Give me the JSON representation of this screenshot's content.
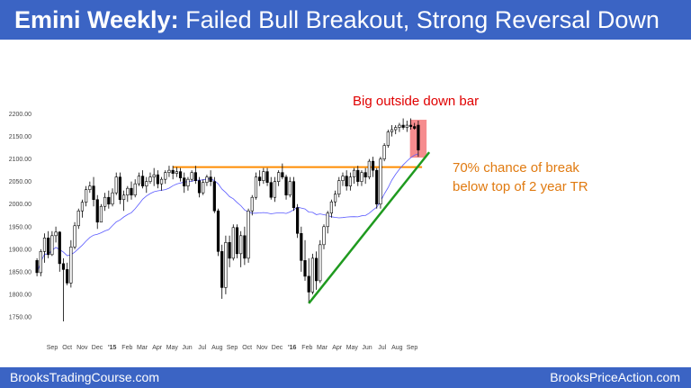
{
  "title": {
    "bold": "Emini Weekly:",
    "rest": "Failed Bull Breakout, Strong Reversal Down"
  },
  "footer": {
    "left": "BrooksTradingCourse.com",
    "right": "BrooksPriceAction.com"
  },
  "annotations": {
    "outside_bar": "Big outside down bar",
    "break_line1": "70% chance of break",
    "break_line2": "below top of 2 year TR"
  },
  "colors": {
    "banner": "#3b64c4",
    "candle": "#000000",
    "moving_average": "#5a5aff",
    "range_top_line": "#ff8c00",
    "trend_line": "#1f9a1f",
    "highlight": "#f4787a",
    "red_text": "#e00000",
    "orange_text": "#e07a10"
  },
  "chart_data": {
    "type": "candlestick",
    "timeframe": "weekly",
    "ylim": [
      1730,
      2225
    ],
    "yticks": [
      "2200.00",
      "2150.00",
      "2100.00",
      "2050.00",
      "2000.00",
      "1950.00",
      "1900.00",
      "1850.00",
      "1800.00",
      "1750.00"
    ],
    "xticks": [
      "Sep",
      "Oct",
      "Nov",
      "Dec",
      "'15",
      "Feb",
      "Mar",
      "Apr",
      "May",
      "Jun",
      "Jul",
      "Aug",
      "Sep",
      "Oct",
      "Nov",
      "Dec",
      "'16",
      "Feb",
      "Mar",
      "Apr",
      "May",
      "Jun",
      "Jul",
      "Aug",
      "Sep"
    ],
    "major_xticks": [
      "'15",
      "'16"
    ],
    "series": [
      {
        "type": "ohlc",
        "values": [
          [
            1875,
            1880,
            1840,
            1848
          ],
          [
            1848,
            1900,
            1840,
            1895
          ],
          [
            1895,
            1935,
            1870,
            1925
          ],
          [
            1925,
            1940,
            1880,
            1888
          ],
          [
            1888,
            1940,
            1885,
            1930
          ],
          [
            1930,
            1950,
            1915,
            1938
          ],
          [
            1938,
            1940,
            1850,
            1868
          ],
          [
            1868,
            1880,
            1740,
            1855
          ],
          [
            1855,
            1870,
            1820,
            1825
          ],
          [
            1825,
            1920,
            1815,
            1905
          ],
          [
            1905,
            1960,
            1900,
            1952
          ],
          [
            1952,
            1990,
            1945,
            1985
          ],
          [
            1985,
            2010,
            1970,
            2004
          ],
          [
            2004,
            2040,
            1995,
            2032
          ],
          [
            2032,
            2050,
            2025,
            2040
          ],
          [
            2040,
            2060,
            1995,
            2010
          ],
          [
            2010,
            2020,
            1945,
            1960
          ],
          [
            1960,
            2000,
            1960,
            1995
          ],
          [
            1995,
            2025,
            1985,
            2015
          ],
          [
            2015,
            2030,
            1990,
            2000
          ],
          [
            2000,
            2035,
            1995,
            2025
          ],
          [
            2025,
            2070,
            2020,
            2060
          ],
          [
            2060,
            2070,
            2000,
            2010
          ],
          [
            2010,
            2030,
            1985,
            2020
          ],
          [
            2020,
            2040,
            2005,
            2035
          ],
          [
            2035,
            2050,
            2010,
            2020
          ],
          [
            2020,
            2055,
            2015,
            2045
          ],
          [
            2045,
            2070,
            2040,
            2062
          ],
          [
            2062,
            2075,
            2035,
            2040
          ],
          [
            2040,
            2060,
            2025,
            2050
          ],
          [
            2050,
            2070,
            2045,
            2060
          ],
          [
            2060,
            2080,
            2040,
            2065
          ],
          [
            2065,
            2075,
            2035,
            2045
          ],
          [
            2045,
            2060,
            2030,
            2055
          ],
          [
            2055,
            2075,
            2045,
            2070
          ],
          [
            2070,
            2085,
            2060,
            2075
          ],
          [
            2075,
            2085,
            2055,
            2068
          ],
          [
            2068,
            2082,
            2060,
            2072
          ],
          [
            2072,
            2080,
            2050,
            2058
          ],
          [
            2058,
            2070,
            2025,
            2040
          ],
          [
            2040,
            2060,
            2030,
            2055
          ],
          [
            2055,
            2075,
            2050,
            2070
          ],
          [
            2070,
            2085,
            2045,
            2052
          ],
          [
            2052,
            2060,
            2015,
            2025
          ],
          [
            2025,
            2055,
            2020,
            2048
          ],
          [
            2048,
            2065,
            2040,
            2060
          ],
          [
            2060,
            2075,
            2040,
            2050
          ],
          [
            2050,
            2060,
            1980,
            1985
          ],
          [
            1985,
            1990,
            1885,
            1895
          ],
          [
            1895,
            1910,
            1790,
            1815
          ],
          [
            1815,
            1930,
            1800,
            1915
          ],
          [
            1915,
            1930,
            1860,
            1880
          ],
          [
            1880,
            1955,
            1875,
            1948
          ],
          [
            1948,
            1955,
            1880,
            1890
          ],
          [
            1890,
            1940,
            1860,
            1930
          ],
          [
            1930,
            1950,
            1865,
            1880
          ],
          [
            1880,
            1990,
            1870,
            1985
          ],
          [
            1985,
            2020,
            1975,
            2015
          ],
          [
            2015,
            2070,
            2010,
            2060
          ],
          [
            2060,
            2075,
            2040,
            2052
          ],
          [
            2052,
            2080,
            2045,
            2072
          ],
          [
            2072,
            2080,
            2040,
            2048
          ],
          [
            2048,
            2060,
            2010,
            2015
          ],
          [
            2015,
            2060,
            2005,
            2050
          ],
          [
            2050,
            2075,
            2040,
            2070
          ],
          [
            2070,
            2090,
            2055,
            2060
          ],
          [
            2060,
            2065,
            2010,
            2020
          ],
          [
            2020,
            2060,
            2015,
            2050
          ],
          [
            2050,
            2060,
            1985,
            1992
          ],
          [
            1992,
            2000,
            1925,
            1935
          ],
          [
            1935,
            1950,
            1850,
            1875
          ],
          [
            1875,
            1920,
            1830,
            1840
          ],
          [
            1840,
            1880,
            1780,
            1805
          ],
          [
            1805,
            1890,
            1800,
            1880
          ],
          [
            1880,
            1895,
            1810,
            1830
          ],
          [
            1830,
            1920,
            1825,
            1910
          ],
          [
            1910,
            1955,
            1900,
            1950
          ],
          [
            1950,
            1985,
            1935,
            1980
          ],
          [
            1980,
            2010,
            1970,
            2005
          ],
          [
            2005,
            2030,
            1995,
            2022
          ],
          [
            2022,
            2060,
            2015,
            2052
          ],
          [
            2052,
            2070,
            2040,
            2062
          ],
          [
            2062,
            2075,
            2030,
            2040
          ],
          [
            2040,
            2070,
            2030,
            2060
          ],
          [
            2060,
            2080,
            2045,
            2075
          ],
          [
            2075,
            2085,
            2040,
            2050
          ],
          [
            2050,
            2075,
            2040,
            2070
          ],
          [
            2070,
            2080,
            2045,
            2060
          ],
          [
            2060,
            2100,
            2055,
            2095
          ],
          [
            2095,
            2105,
            2060,
            2075
          ],
          [
            2075,
            2080,
            1990,
            2000
          ],
          [
            2000,
            2105,
            1990,
            2100
          ],
          [
            2100,
            2135,
            2095,
            2130
          ],
          [
            2130,
            2165,
            2125,
            2160
          ],
          [
            2160,
            2175,
            2150,
            2165
          ],
          [
            2165,
            2175,
            2155,
            2170
          ],
          [
            2170,
            2180,
            2160,
            2175
          ],
          [
            2175,
            2190,
            2165,
            2170
          ],
          [
            2170,
            2185,
            2160,
            2175
          ],
          [
            2175,
            2190,
            2165,
            2172
          ],
          [
            2172,
            2180,
            2165,
            2168
          ],
          [
            2175,
            2185,
            2105,
            2120
          ]
        ]
      },
      {
        "name": "",
        "type": "moving-average",
        "period": 20
      }
    ],
    "lines": [
      {
        "kind": "horizontal",
        "y": 2082,
        "from_bar": 37,
        "to_bar": 101,
        "color": "range_top_line"
      },
      {
        "kind": "trend",
        "from_bar": 72,
        "from_y": 1780,
        "to_bar": 102,
        "to_y": 2095,
        "extend_to_y": 2115,
        "color": "trend_line"
      }
    ],
    "highlight_bar": 101
  }
}
